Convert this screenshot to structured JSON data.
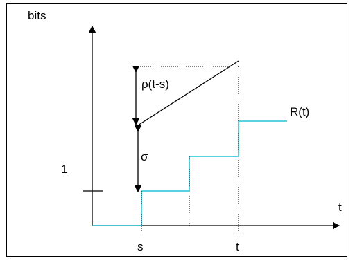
{
  "y_axis_label": "bits",
  "x_axis_label": "t",
  "label_one": "1",
  "label_rho": "ρ(t-s)",
  "label_sigma": "σ",
  "label_curve": "R(t)",
  "tick_s": "s",
  "tick_t": "t",
  "colors": {
    "axis": "#000000",
    "curve": "#22c4d6",
    "guides": "#000000"
  },
  "staircase_steps": 3
}
